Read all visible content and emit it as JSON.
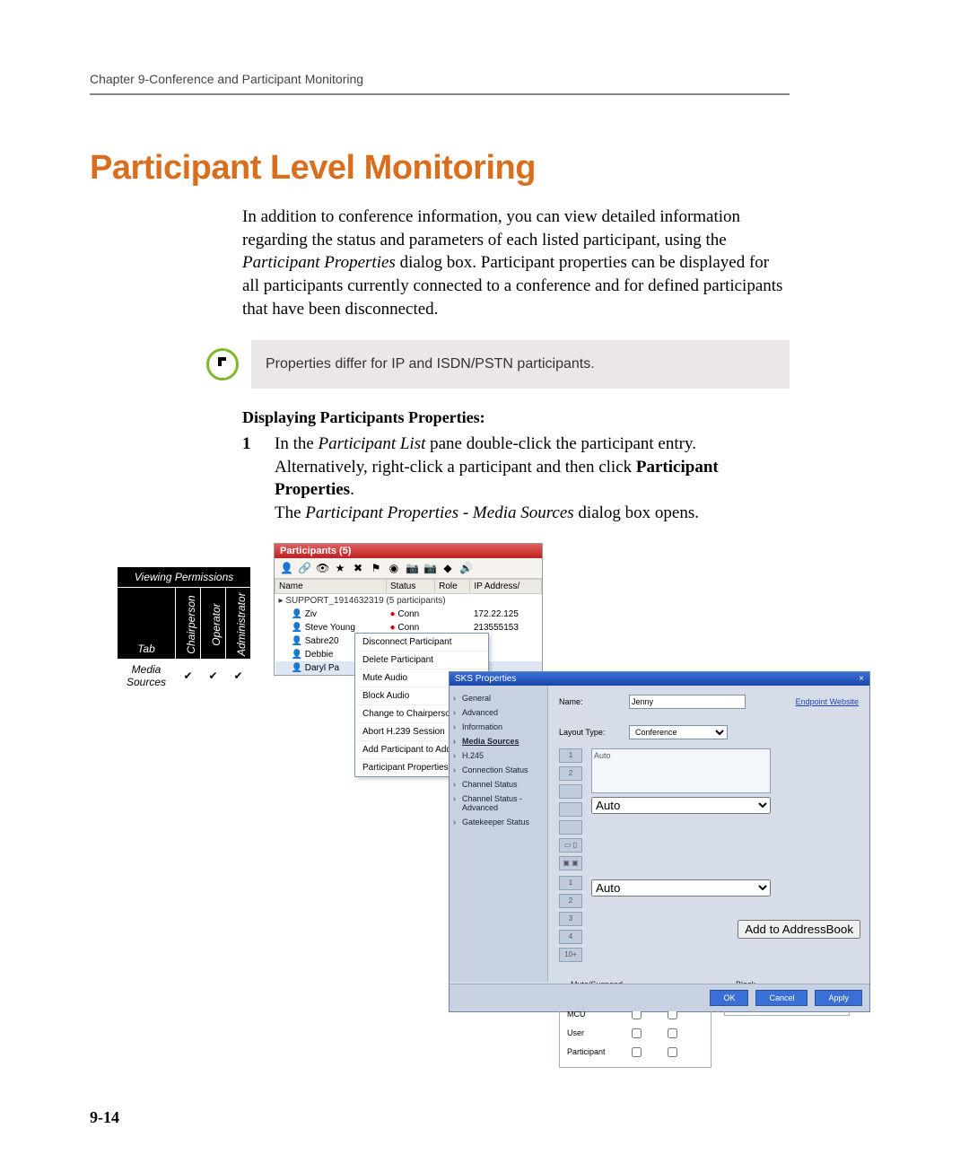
{
  "header": {
    "chapter_line": "Chapter 9-Conference and Participant Monitoring"
  },
  "title": "Participant Level Monitoring",
  "intro": {
    "p1a": "In addition to conference information, you can view detailed information regarding the status and parameters of each listed participant, using the ",
    "p1b_italic": "Participant Properties",
    "p1c": " dialog box. Participant properties can be displayed for all participants currently connected to a conference and for defined participants that have been disconnected."
  },
  "note": {
    "text": "Properties differ for IP and ISDN/PSTN participants."
  },
  "subhead": "Displaying Participants Properties:",
  "step": {
    "num": "1",
    "a": "In the ",
    "b_italic": "Participant List",
    "c": " pane double-click the participant entry. Alternatively, right-click a participant and then click ",
    "d_bold": "Participant Properties",
    "e": ".",
    "f_a": "The ",
    "f_b_italic": "Participant Properties - Media Sources",
    "f_c": " dialog box opens."
  },
  "perm": {
    "caption": "Viewing Permissions",
    "cols": [
      "Chairperson",
      "Operator",
      "Administrator"
    ],
    "tab_label": "Tab",
    "row_label": "Media Sources",
    "checks": [
      "✔",
      "✔",
      "✔"
    ]
  },
  "participants": {
    "title": "Participants (5)",
    "toolbar_icons": [
      "person-add-icon",
      "link-icon",
      "eye-icon",
      "star-icon",
      "person-x-icon",
      "flag-icon",
      "sphere-icon",
      "cam1-icon",
      "cam2-icon",
      "diamond-icon",
      "sound-icon"
    ],
    "toolbar_glyphs": [
      "👤",
      "🔗",
      "👁",
      "★",
      "✖",
      "⚑",
      "◉",
      "📷",
      "📷",
      "◆",
      "🔊"
    ],
    "columns": [
      "Name",
      "Status",
      "Role",
      "IP Address/"
    ],
    "group": "SUPPORT_1914632319 (5  participants)",
    "rows": [
      {
        "name": "Ziv",
        "status": "Conn",
        "role": "",
        "ip": "172.22.125",
        "status_icon": "●"
      },
      {
        "name": "Steve Young",
        "status": "Conn",
        "role": "",
        "ip": "213555153",
        "status_icon": "●"
      },
      {
        "name": "Sabre20",
        "status": "",
        "role": "",
        "ip": ""
      },
      {
        "name": "Debbie",
        "status": "",
        "role": "",
        "ip": ""
      },
      {
        "name": "Daryl Pa",
        "status": "",
        "role": "",
        "ip": ""
      }
    ],
    "context_menu": [
      "Disconnect Participant",
      "Delete Participant",
      "Mute Audio",
      "Block Audio",
      "Change to Chairperson",
      "Abort H.239 Session",
      "Add Participant to Address",
      "Participant Properties"
    ]
  },
  "properties": {
    "title": "SKS Properties",
    "close_glyph": "×",
    "nav": [
      "General",
      "Advanced",
      "Information",
      "Media Sources",
      "H.245",
      "Connection Status",
      "Channel Status",
      "Channel Status - Advanced",
      "Gatekeeper Status"
    ],
    "nav_selected_index": 3,
    "name_label": "Name:",
    "name_value": "Jenny",
    "endpoint_link": "Endpoint Website",
    "layout_label": "Layout Type:",
    "layout_value": "Conference",
    "cells": [
      "1",
      "2",
      "",
      "",
      ""
    ],
    "cells2": [
      "1",
      "2",
      "3",
      "4",
      "10+"
    ],
    "preview1_value": "Auto",
    "preview2_value": "Auto",
    "layout_icons": [
      "▭ ▯",
      "▣ ▣"
    ],
    "mute_legend": "Mute/Suspend",
    "mute_cols": [
      "Audio",
      "Video"
    ],
    "mute_rows": [
      "MCU",
      "User",
      "Participant"
    ],
    "block_legend": "Block",
    "block_item": "Audio",
    "add_btn": "Add to AddressBook",
    "ok": "OK",
    "cancel": "Cancel",
    "apply": "Apply"
  },
  "page_number": "9-14",
  "colors": {
    "heading": "#d96f1e",
    "note_bg": "#ece6eb",
    "note_ring": "#7fb82c",
    "participants_title_bg": "#c02020",
    "dialog_bg": "#d6dde9",
    "dialog_title": "#1946a8",
    "btn": "#3a6fd8",
    "oval": "#2a5fd0"
  }
}
